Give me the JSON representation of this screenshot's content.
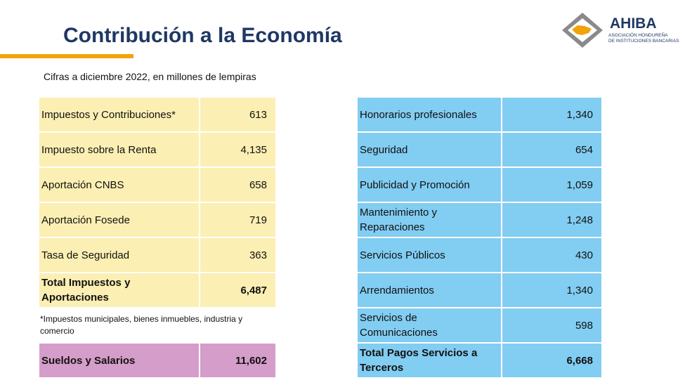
{
  "header": {
    "title": "Contribución a la Economía",
    "subtitle": "Cifras a diciembre 2022, en millones de lempiras"
  },
  "logo": {
    "name": "AHIBA",
    "line1": "ASOCIACIÓN HONDUREÑA",
    "line2": "DE INSTITUCIONES BANCARIAS"
  },
  "left_table": {
    "rows": [
      [
        "Impuestos y Contribuciones*",
        "613"
      ],
      [
        "Impuesto sobre la Renta",
        "4,135"
      ],
      [
        "Aportación CNBS",
        "658"
      ],
      [
        "Aportación Fosede",
        "719"
      ],
      [
        "Tasa de Seguridad",
        "363"
      ],
      [
        "Total Impuestos y Aportaciones",
        "6,487"
      ]
    ]
  },
  "footnote": "*Impuestos municipales, bienes inmuebles, industria y comercio",
  "salary_row": [
    "Sueldos y Salarios",
    "11,602"
  ],
  "right_table": {
    "rows": [
      [
        "Honorarios profesionales",
        "1,340"
      ],
      [
        "Seguridad",
        "654"
      ],
      [
        "Publicidad y Promoción",
        "1,059"
      ],
      [
        "Mantenimiento y Reparaciones",
        "1,248"
      ],
      [
        "Servicios Públicos",
        "430"
      ],
      [
        "Arrendamientos",
        "1,340"
      ],
      [
        "Servicios de Comunicaciones",
        "598"
      ],
      [
        "Total Pagos Servicios a Terceros",
        "6,668"
      ]
    ]
  }
}
